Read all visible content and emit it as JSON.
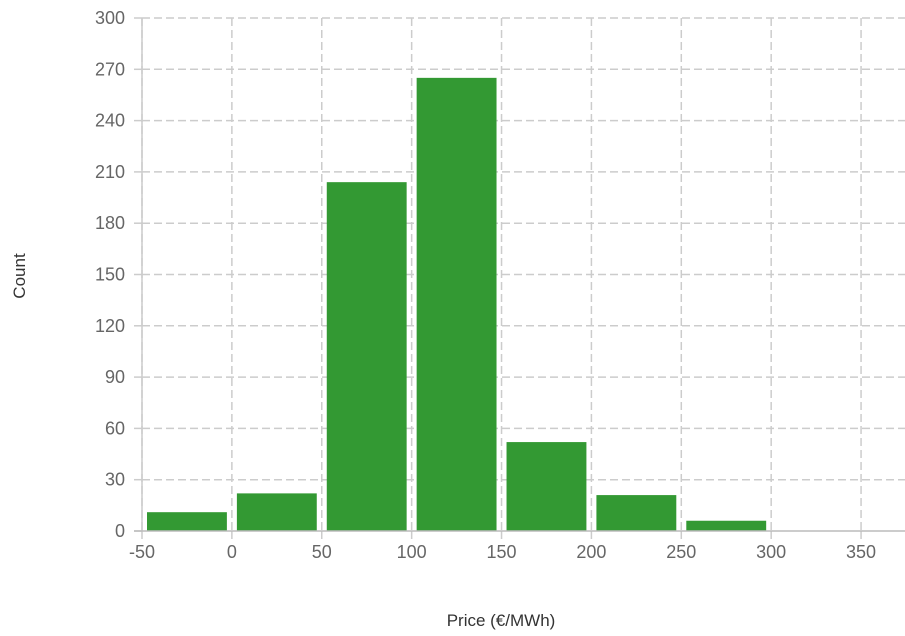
{
  "chart_data": {
    "type": "bar",
    "title": "",
    "xlabel": "Price (€/MWh)",
    "ylabel": "Count",
    "xlim": [
      -50,
      375
    ],
    "ylim": [
      0,
      300
    ],
    "x_ticks": [
      -50,
      0,
      50,
      100,
      150,
      200,
      250,
      300,
      350
    ],
    "x_tick_labels": [
      "-50",
      "0",
      "50",
      "100",
      "150",
      "200",
      "250",
      "300",
      "350"
    ],
    "y_ticks": [
      0,
      30,
      60,
      90,
      120,
      150,
      180,
      210,
      240,
      270,
      300
    ],
    "y_tick_labels": [
      "0",
      "30",
      "60",
      "90",
      "120",
      "150",
      "180",
      "210",
      "240",
      "270",
      "300"
    ],
    "bins": [
      {
        "start": -50,
        "end": 0,
        "count": 11
      },
      {
        "start": 0,
        "end": 50,
        "count": 22
      },
      {
        "start": 50,
        "end": 100,
        "count": 204
      },
      {
        "start": 100,
        "end": 150,
        "count": 265
      },
      {
        "start": 150,
        "end": 200,
        "count": 52
      },
      {
        "start": 200,
        "end": 250,
        "count": 21
      },
      {
        "start": 250,
        "end": 300,
        "count": 6
      }
    ],
    "bar_color": "#339933",
    "grid": true,
    "grid_color": "#cccccc",
    "legend": "none"
  }
}
